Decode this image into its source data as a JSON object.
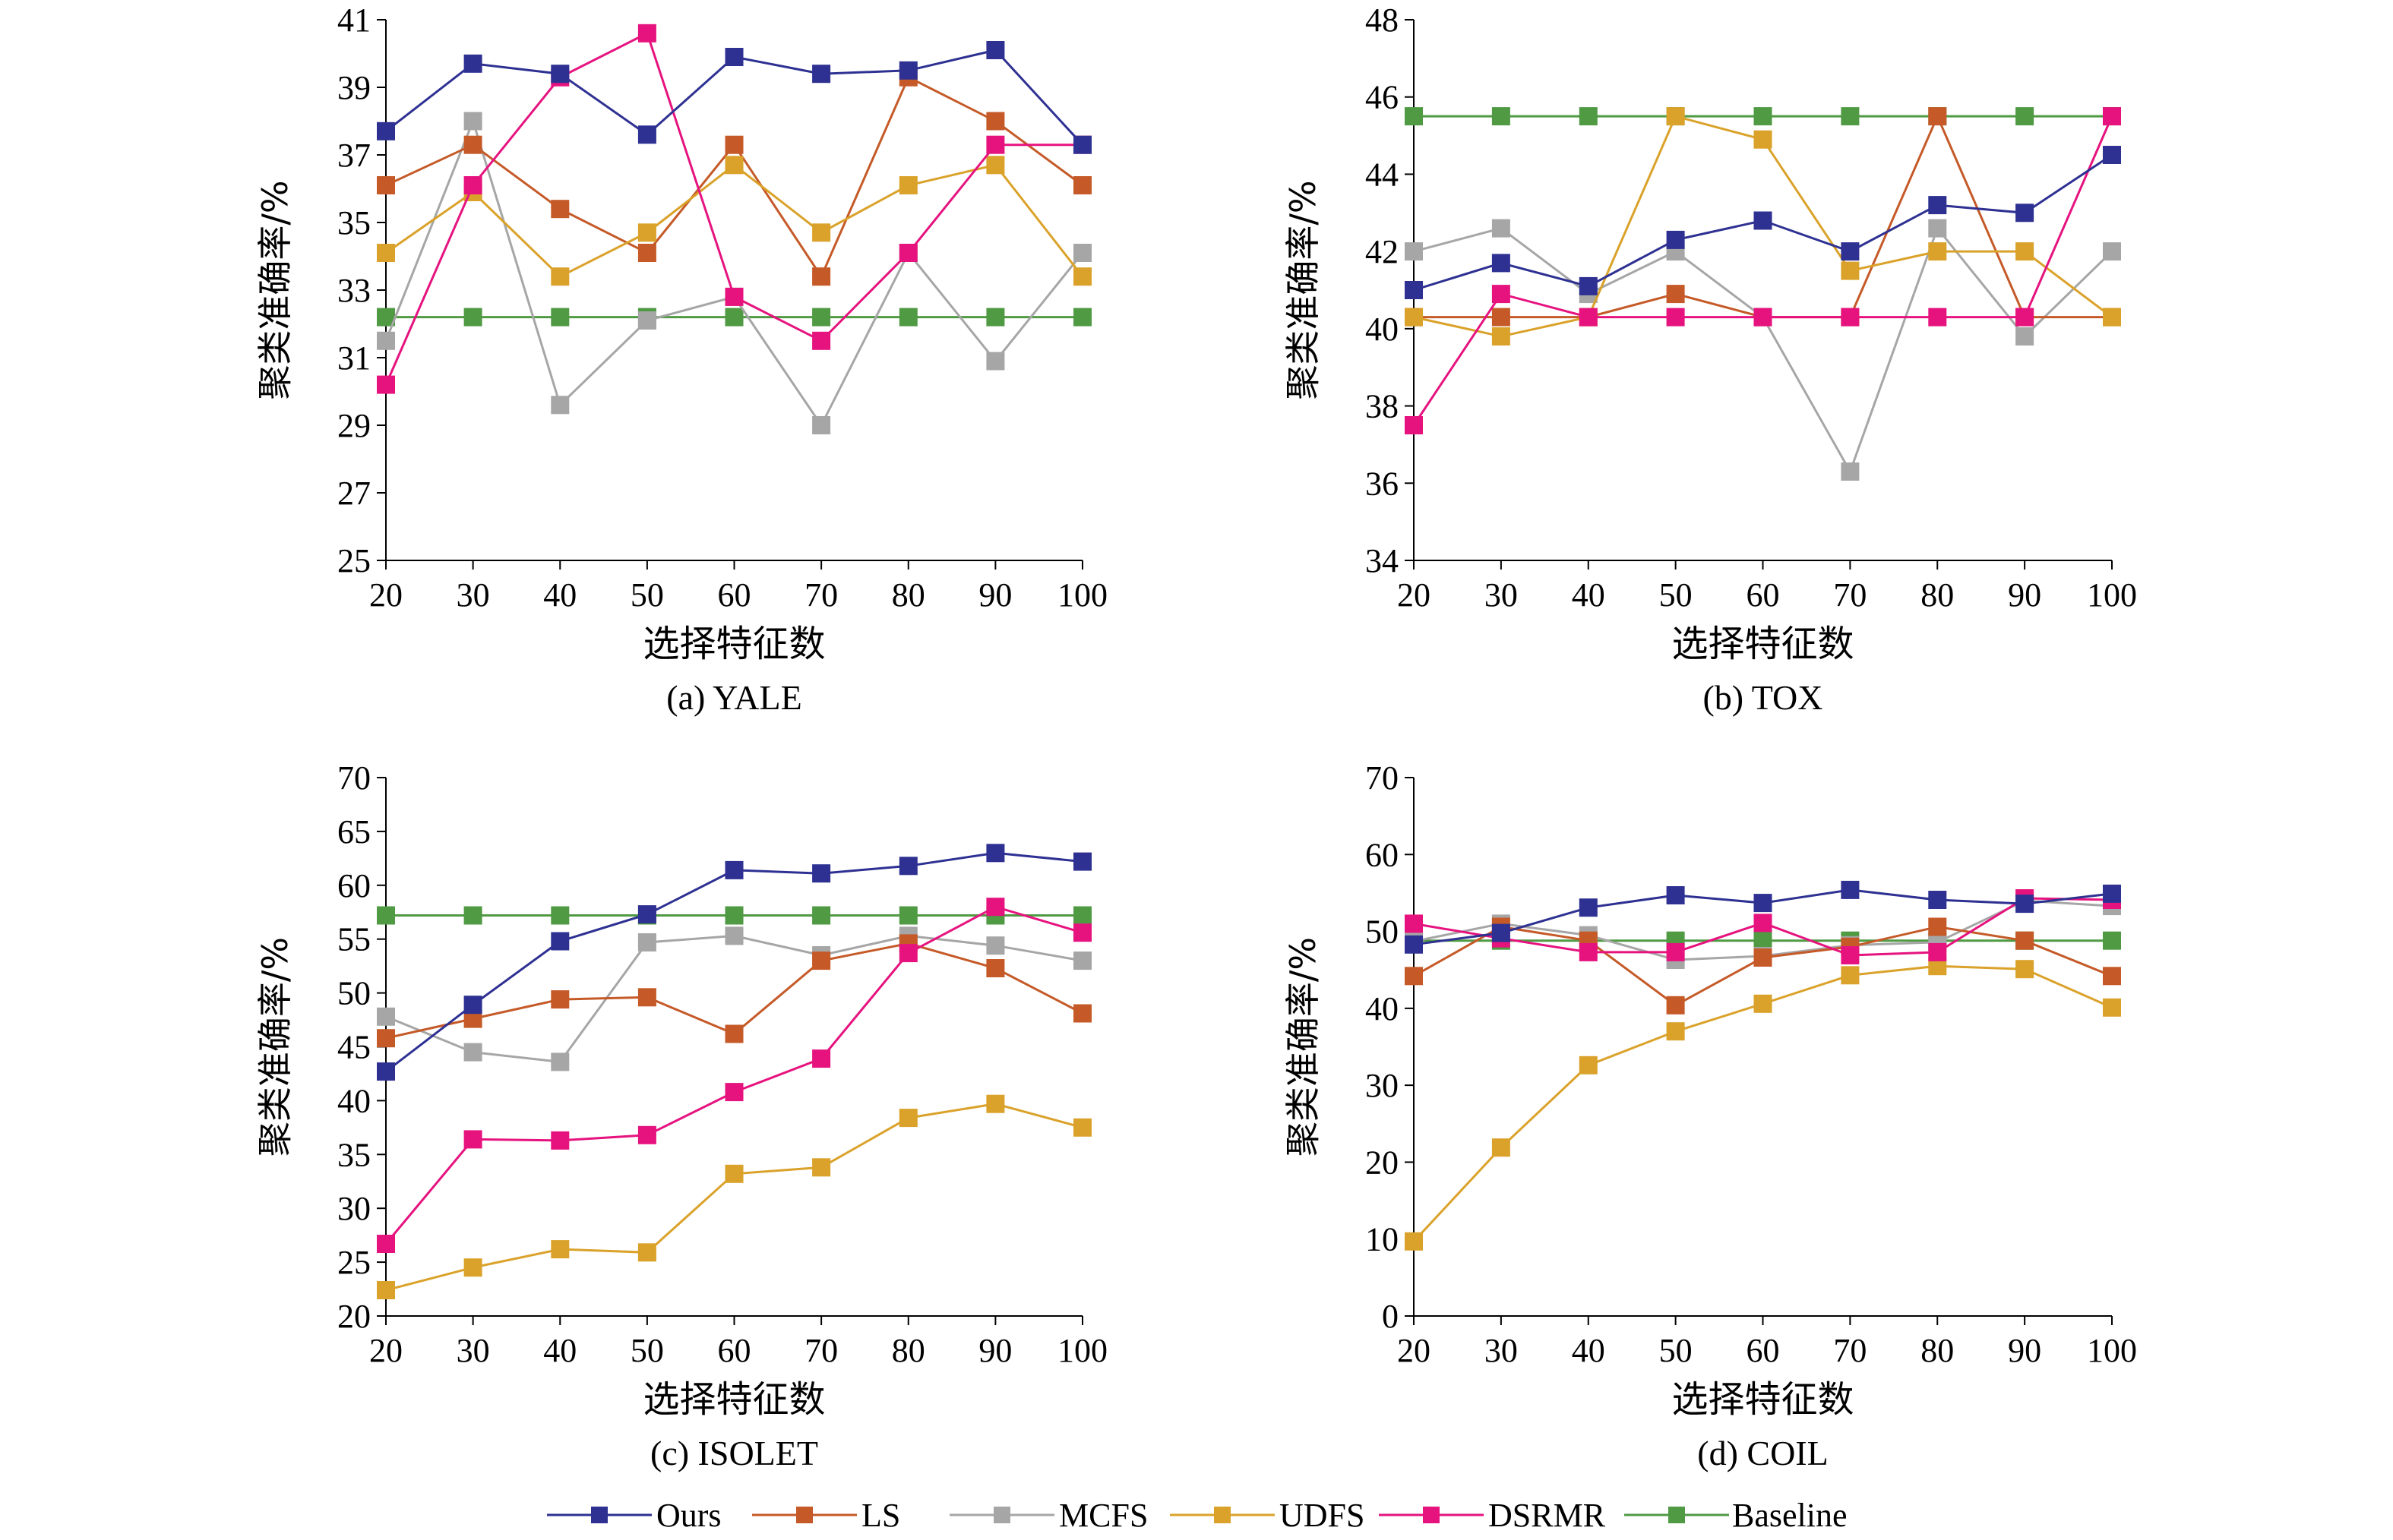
{
  "chart_data": [
    {
      "type": "line",
      "caption": "(a) YALE",
      "xlabel": "选择特征数",
      "ylabel": "聚类准确率/%",
      "x": [
        20,
        30,
        40,
        50,
        60,
        70,
        80,
        90,
        100
      ],
      "xticks": [
        "20",
        "30",
        "40",
        "50",
        "60",
        "70",
        "80",
        "90",
        "100"
      ],
      "ylim": [
        25,
        41
      ],
      "yticks": [
        "25",
        "27",
        "29",
        "31",
        "33",
        "35",
        "37",
        "39",
        "41"
      ],
      "series": [
        {
          "name": "Ours",
          "values": [
            37.7,
            39.7,
            39.4,
            37.6,
            39.9,
            39.4,
            39.5,
            40.1,
            37.3
          ]
        },
        {
          "name": "LS",
          "values": [
            36.1,
            37.3,
            35.4,
            34.1,
            37.3,
            33.4,
            39.3,
            38.0,
            36.1
          ]
        },
        {
          "name": "MCFS",
          "values": [
            31.5,
            38.0,
            29.6,
            32.1,
            32.8,
            29.0,
            34.1,
            30.9,
            34.1
          ]
        },
        {
          "name": "UDFS",
          "values": [
            34.1,
            35.9,
            33.4,
            34.7,
            36.7,
            34.7,
            36.1,
            36.7,
            33.4
          ]
        },
        {
          "name": "DSRMR",
          "values": [
            30.2,
            36.1,
            39.3,
            40.6,
            32.8,
            31.5,
            34.1,
            37.3,
            37.3
          ]
        },
        {
          "name": "Baseline",
          "values": [
            32.2,
            32.2,
            32.2,
            32.2,
            32.2,
            32.2,
            32.2,
            32.2,
            32.2
          ]
        }
      ]
    },
    {
      "type": "line",
      "caption": "(b) TOX",
      "xlabel": "选择特征数",
      "ylabel": "聚类准确率/%",
      "x": [
        20,
        30,
        40,
        50,
        60,
        70,
        80,
        90,
        100
      ],
      "xticks": [
        "20",
        "30",
        "40",
        "50",
        "60",
        "70",
        "80",
        "90",
        "100"
      ],
      "ylim": [
        34,
        48
      ],
      "yticks": [
        "34",
        "36",
        "38",
        "40",
        "42",
        "44",
        "46",
        "48"
      ],
      "series": [
        {
          "name": "Ours",
          "values": [
            41.0,
            41.7,
            41.1,
            42.3,
            42.8,
            42.0,
            43.2,
            43.0,
            44.5
          ]
        },
        {
          "name": "LS",
          "values": [
            40.3,
            40.3,
            40.3,
            40.9,
            40.3,
            40.3,
            45.5,
            40.3,
            40.3
          ]
        },
        {
          "name": "MCFS",
          "values": [
            42.0,
            42.6,
            40.9,
            42.0,
            40.3,
            36.3,
            42.6,
            39.8,
            42.0
          ]
        },
        {
          "name": "UDFS",
          "values": [
            40.3,
            39.8,
            40.3,
            45.5,
            44.9,
            41.5,
            42.0,
            42.0,
            40.3
          ]
        },
        {
          "name": "DSRMR",
          "values": [
            37.5,
            40.9,
            40.3,
            40.3,
            40.3,
            40.3,
            40.3,
            40.3,
            45.5
          ]
        },
        {
          "name": "Baseline",
          "values": [
            45.5,
            45.5,
            45.5,
            45.5,
            45.5,
            45.5,
            45.5,
            45.5,
            45.5
          ]
        }
      ]
    },
    {
      "type": "line",
      "caption": "(c) ISOLET",
      "xlabel": "选择特征数",
      "ylabel": "聚类准确率/%",
      "x": [
        20,
        30,
        40,
        50,
        60,
        70,
        80,
        90,
        100
      ],
      "xticks": [
        "20",
        "30",
        "40",
        "50",
        "60",
        "70",
        "80",
        "90",
        "100"
      ],
      "ylim": [
        20,
        70
      ],
      "yticks": [
        "20",
        "25",
        "30",
        "35",
        "40",
        "45",
        "50",
        "55",
        "60",
        "65",
        "70"
      ],
      "series": [
        {
          "name": "Ours",
          "values": [
            42.7,
            48.9,
            54.8,
            57.3,
            61.4,
            61.1,
            61.8,
            63.0,
            62.2
          ]
        },
        {
          "name": "LS",
          "values": [
            45.8,
            47.6,
            49.4,
            49.6,
            46.2,
            53.0,
            54.6,
            52.3,
            48.1
          ]
        },
        {
          "name": "MCFS",
          "values": [
            47.8,
            44.5,
            43.6,
            54.7,
            55.3,
            53.5,
            55.3,
            54.4,
            53.0
          ]
        },
        {
          "name": "UDFS",
          "values": [
            22.4,
            24.5,
            26.2,
            25.9,
            33.2,
            33.8,
            38.4,
            39.7,
            37.5
          ]
        },
        {
          "name": "DSRMR",
          "values": [
            26.7,
            36.4,
            36.3,
            36.8,
            40.8,
            43.9,
            53.7,
            58.0,
            55.6
          ]
        },
        {
          "name": "Baseline",
          "values": [
            57.2,
            57.2,
            57.2,
            57.2,
            57.2,
            57.2,
            57.2,
            57.2,
            57.2
          ]
        }
      ]
    },
    {
      "type": "line",
      "caption": "(d) COIL",
      "xlabel": "选择特征数",
      "ylabel": "聚类准确率/%",
      "x": [
        20,
        30,
        40,
        50,
        60,
        70,
        80,
        90,
        100
      ],
      "xticks": [
        "20",
        "30",
        "40",
        "50",
        "60",
        "70",
        "80",
        "90",
        "100"
      ],
      "ylim": [
        0,
        70
      ],
      "yticks": [
        "0",
        "10",
        "20",
        "30",
        "40",
        "50",
        "60",
        "70"
      ],
      "series": [
        {
          "name": "Ours",
          "values": [
            48.3,
            49.8,
            53.1,
            54.7,
            53.7,
            55.4,
            54.1,
            53.6,
            54.9
          ]
        },
        {
          "name": "LS",
          "values": [
            44.2,
            50.6,
            48.8,
            40.4,
            46.6,
            48.0,
            50.6,
            48.8,
            44.2
          ]
        },
        {
          "name": "MCFS",
          "values": [
            48.7,
            51.0,
            49.5,
            46.3,
            46.8,
            48.2,
            48.6,
            54.0,
            53.3
          ]
        },
        {
          "name": "UDFS",
          "values": [
            9.7,
            21.9,
            32.6,
            37.0,
            40.6,
            44.3,
            45.5,
            45.1,
            40.1
          ]
        },
        {
          "name": "DSRMR",
          "values": [
            51.0,
            49.1,
            47.3,
            47.3,
            51.1,
            46.9,
            47.3,
            54.3,
            54.1
          ]
        },
        {
          "name": "Baseline",
          "values": [
            48.8,
            48.8,
            48.8,
            48.8,
            48.8,
            48.8,
            48.8,
            48.8,
            48.8
          ]
        }
      ]
    }
  ],
  "legend": {
    "items": [
      {
        "name": "Ours",
        "color": "#2E3192"
      },
      {
        "name": "LS",
        "color": "#C55A28"
      },
      {
        "name": "MCFS",
        "color": "#A6A6A6"
      },
      {
        "name": "UDFS",
        "color": "#DAA22A"
      },
      {
        "name": "DSRMR",
        "color": "#E6137F"
      },
      {
        "name": "Baseline",
        "color": "#4F9A43"
      }
    ]
  }
}
